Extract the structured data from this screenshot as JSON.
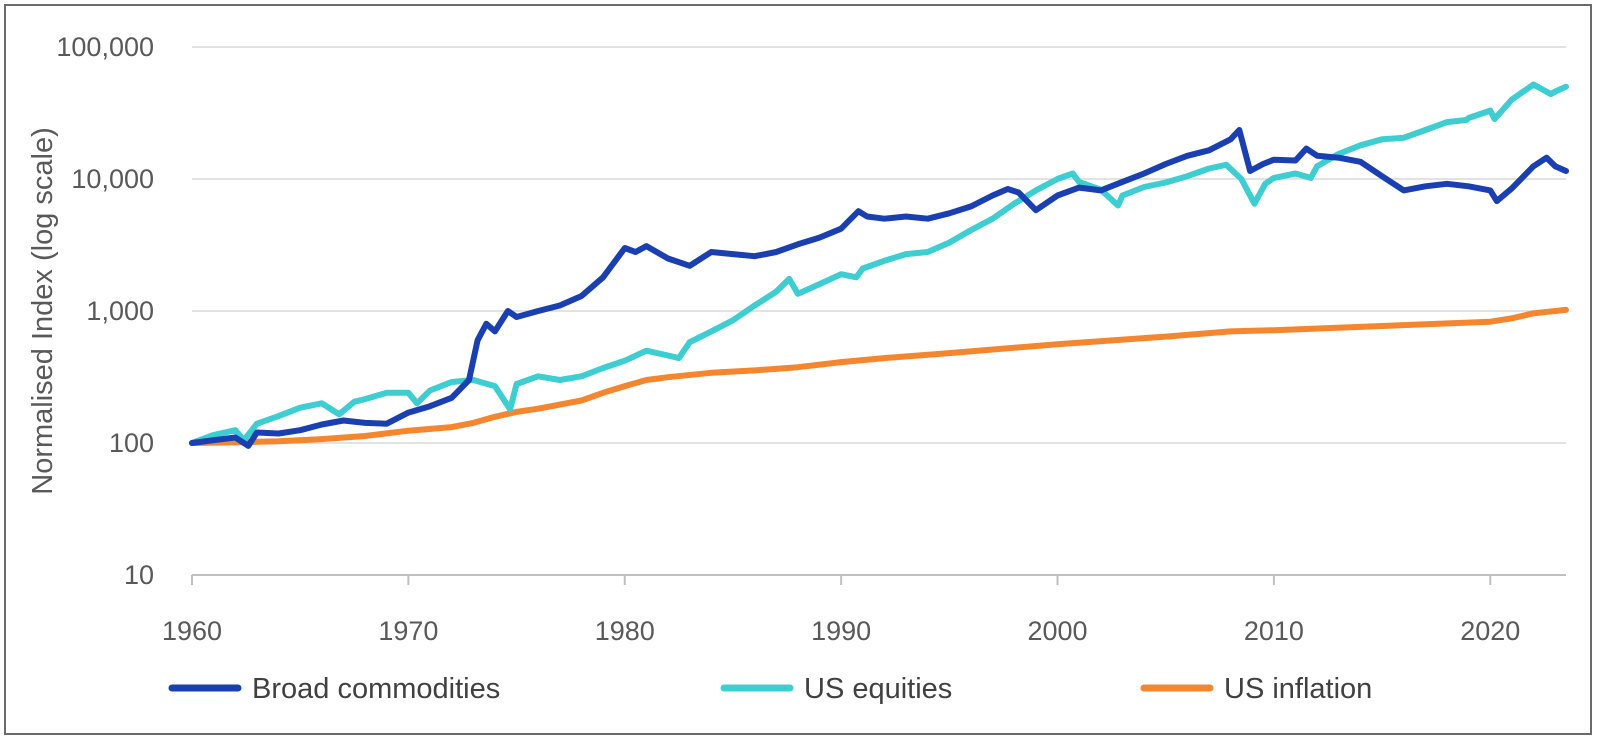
{
  "chart_data": {
    "type": "line",
    "title": "",
    "ylabel": "Normalised Index (log scale)",
    "xlabel": "",
    "yscale": "log",
    "ylim": [
      10,
      100000
    ],
    "xlim": [
      1960,
      2023.5
    ],
    "y_ticks": [
      10,
      100,
      1000,
      10000,
      100000
    ],
    "y_tick_labels": [
      "10",
      "100",
      "1,000",
      "10,000",
      "100,000"
    ],
    "x_ticks": [
      1960,
      1970,
      1980,
      1990,
      2000,
      2010,
      2020
    ],
    "x_tick_labels": [
      "1960",
      "1970",
      "1980",
      "1990",
      "2000",
      "2010",
      "2020"
    ],
    "grid": "horizontal",
    "legend_position": "bottom",
    "series": [
      {
        "name": "Broad commodities",
        "color": "#1a3fb0",
        "x": [
          1960,
          1961,
          1962,
          1962.6,
          1963,
          1964,
          1965,
          1966,
          1967,
          1968,
          1969,
          1970,
          1971,
          1972,
          1972.8,
          1973.2,
          1973.6,
          1974,
          1974.6,
          1975,
          1976,
          1977,
          1978,
          1979,
          1980,
          1980.5,
          1981,
          1982,
          1983,
          1984,
          1985,
          1986,
          1987,
          1988,
          1989,
          1990,
          1990.8,
          1991.2,
          1992,
          1993,
          1994,
          1995,
          1996,
          1997,
          1997.7,
          1998.2,
          1999,
          2000,
          2001,
          2002,
          2003,
          2004,
          2005,
          2006,
          2007,
          2008,
          2008.4,
          2008.9,
          2009.5,
          2010,
          2011,
          2011.5,
          2012,
          2013,
          2014,
          2015,
          2016,
          2017,
          2018,
          2019,
          2020,
          2020.3,
          2021,
          2022,
          2022.6,
          2023,
          2023.5
        ],
        "y": [
          100,
          105,
          110,
          95,
          120,
          118,
          125,
          138,
          148,
          142,
          140,
          170,
          190,
          220,
          300,
          600,
          800,
          700,
          1000,
          900,
          1000,
          1100,
          1300,
          1800,
          3000,
          2800,
          3100,
          2500,
          2200,
          2800,
          2700,
          2600,
          2800,
          3200,
          3600,
          4200,
          5700,
          5200,
          5000,
          5200,
          5000,
          5500,
          6200,
          7500,
          8400,
          7900,
          5800,
          7500,
          8600,
          8200,
          9500,
          11000,
          13000,
          15000,
          16500,
          20000,
          23500,
          11500,
          13000,
          14000,
          13800,
          17000,
          15000,
          14500,
          13500,
          10500,
          8200,
          8800,
          9200,
          8800,
          8200,
          6800,
          8500,
          12500,
          14500,
          12500,
          11500
        ]
      },
      {
        "name": "US equities",
        "color": "#3ecdd0",
        "x": [
          1960,
          1961,
          1962,
          1962.4,
          1963,
          1964,
          1965,
          1966,
          1966.8,
          1967.5,
          1968,
          1969,
          1970,
          1970.4,
          1971,
          1972,
          1973,
          1974,
          1974.7,
          1975,
          1976,
          1977,
          1978,
          1979,
          1980,
          1981,
          1982,
          1982.5,
          1983,
          1984,
          1985,
          1986,
          1987,
          1987.6,
          1988,
          1989,
          1990,
          1990.7,
          1991,
          1992,
          1993,
          1994,
          1995,
          1996,
          1997,
          1998,
          1999,
          2000,
          2000.7,
          2001,
          2002,
          2002.8,
          2003,
          2004,
          2005,
          2006,
          2007,
          2007.8,
          2008.5,
          2009.1,
          2009.6,
          2010,
          2011,
          2011.7,
          2012,
          2013,
          2014,
          2015,
          2016,
          2017,
          2018,
          2018.9,
          2019,
          2020,
          2020.2,
          2021,
          2022,
          2022.8,
          2023,
          2023.5
        ],
        "y": [
          100,
          115,
          125,
          105,
          140,
          160,
          185,
          200,
          165,
          205,
          215,
          240,
          240,
          200,
          250,
          290,
          300,
          270,
          180,
          280,
          320,
          300,
          320,
          370,
          420,
          500,
          460,
          440,
          580,
          700,
          850,
          1100,
          1400,
          1750,
          1350,
          1600,
          1900,
          1800,
          2100,
          2400,
          2700,
          2800,
          3300,
          4100,
          5000,
          6500,
          8200,
          10000,
          11000,
          9500,
          8300,
          6300,
          7500,
          8700,
          9400,
          10500,
          12000,
          12800,
          10000,
          6500,
          9200,
          10200,
          11000,
          10200,
          12500,
          15500,
          18000,
          20000,
          20500,
          23500,
          27000,
          28000,
          29000,
          33000,
          28500,
          40000,
          52000,
          44000,
          46000,
          50000
        ]
      },
      {
        "name": "US inflation",
        "color": "#f3862f",
        "x": [
          1960,
          1962,
          1964,
          1966,
          1968,
          1970,
          1972,
          1973,
          1974,
          1975,
          1976,
          1978,
          1979,
          1980,
          1981,
          1982,
          1984,
          1986,
          1988,
          1990,
          1992,
          1995,
          2000,
          2005,
          2008,
          2010,
          2015,
          2020,
          2021,
          2022,
          2023.5
        ],
        "y": [
          100,
          101,
          103,
          107,
          113,
          124,
          132,
          142,
          158,
          172,
          182,
          210,
          240,
          270,
          300,
          315,
          340,
          355,
          375,
          410,
          440,
          480,
          560,
          640,
          700,
          715,
          770,
          830,
          880,
          960,
          1020
        ]
      }
    ]
  }
}
